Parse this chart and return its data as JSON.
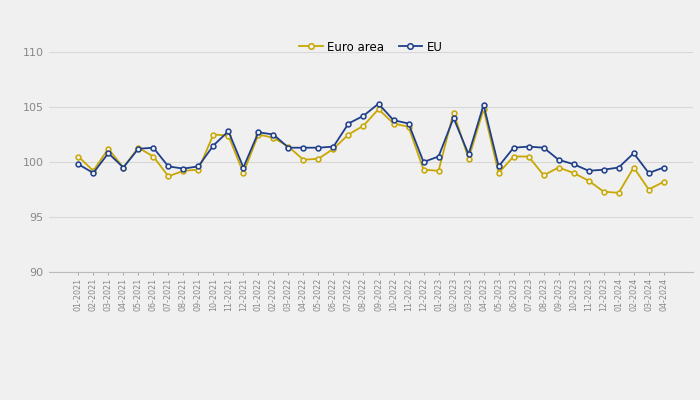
{
  "labels": [
    "01-2021",
    "02-2021",
    "03-2021",
    "04-2021",
    "05-2021",
    "06-2021",
    "07-2021",
    "08-2021",
    "09-2021",
    "10-2021",
    "11-2021",
    "12-2021",
    "01-2022",
    "02-2022",
    "03-2022",
    "04-2022",
    "05-2022",
    "06-2022",
    "07-2022",
    "08-2022",
    "09-2022",
    "10-2022",
    "11-2022",
    "12-2022",
    "01-2023",
    "02-2023",
    "03-2023",
    "04-2023",
    "05-2023",
    "06-2023",
    "07-2023",
    "08-2023",
    "09-2023",
    "10-2023",
    "11-2023",
    "12-2023",
    "01-2024",
    "02-2024",
    "03-2024",
    "04-2024"
  ],
  "euro_area": [
    100.5,
    99.2,
    101.2,
    99.5,
    101.3,
    100.5,
    98.7,
    99.2,
    99.3,
    102.5,
    102.4,
    99.0,
    102.5,
    102.2,
    101.4,
    100.2,
    100.3,
    101.2,
    102.5,
    103.3,
    104.8,
    103.5,
    103.2,
    99.3,
    99.2,
    104.5,
    100.3,
    104.8,
    99.0,
    100.5,
    100.5,
    98.8,
    99.5,
    99.0,
    98.3,
    97.3,
    97.2,
    99.5,
    97.5,
    98.2
  ],
  "eu": [
    99.8,
    99.0,
    100.8,
    99.5,
    101.2,
    101.3,
    99.6,
    99.4,
    99.6,
    101.5,
    102.8,
    99.5,
    102.7,
    102.5,
    101.3,
    101.3,
    101.3,
    101.4,
    103.5,
    104.2,
    105.3,
    103.8,
    103.5,
    100.0,
    100.5,
    104.0,
    100.7,
    105.2,
    99.6,
    101.3,
    101.4,
    101.3,
    100.2,
    99.8,
    99.2,
    99.3,
    99.5,
    100.8,
    99.0,
    99.5
  ],
  "euro_area_color": "#C8A800",
  "eu_color": "#1F3F8A",
  "background_color": "#f0f0f0",
  "ylim": [
    90,
    110
  ],
  "yticks": [
    90,
    95,
    100,
    105,
    110
  ],
  "legend_euro_area": "Euro area",
  "legend_eu": "EU",
  "grid_color": "#d8d8d8",
  "tick_color": "#888888",
  "spine_color": "#bbbbbb"
}
